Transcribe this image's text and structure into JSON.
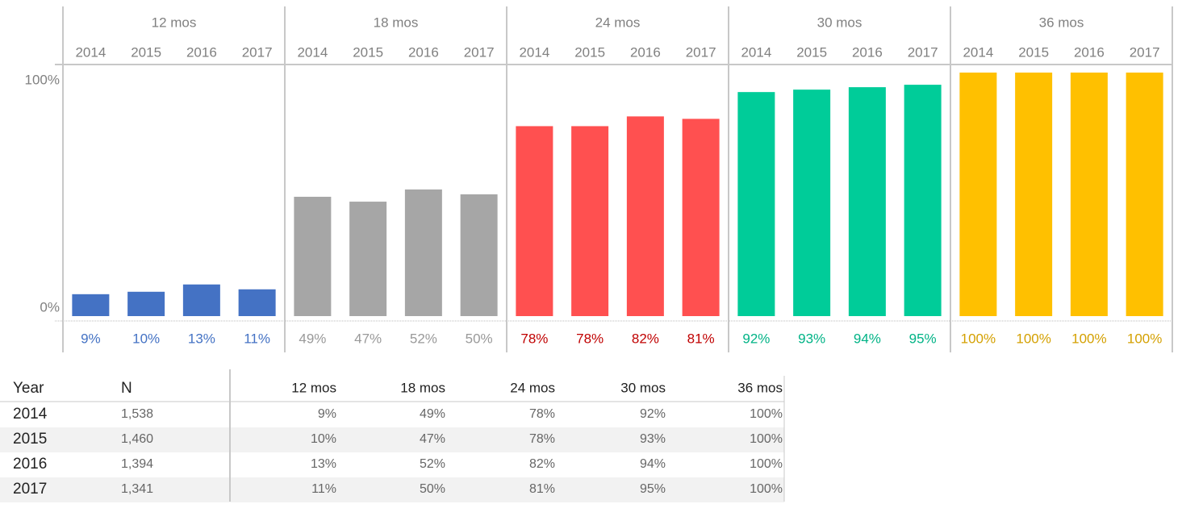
{
  "chart_data": {
    "type": "bar",
    "ylim": [
      0,
      100
    ],
    "yticks": [
      {
        "value": 0,
        "label": "0%"
      },
      {
        "value": 100,
        "label": "100%"
      }
    ],
    "groups": [
      {
        "name": "12 mos",
        "color": "#4472c4",
        "label_color": "#4472c4",
        "categories": [
          "2014",
          "2015",
          "2016",
          "2017"
        ],
        "values": [
          9,
          10,
          13,
          11
        ],
        "value_labels": [
          "9%",
          "10%",
          "13%",
          "11%"
        ]
      },
      {
        "name": "18 mos",
        "color": "#a6a6a6",
        "label_color": "#999999",
        "categories": [
          "2014",
          "2015",
          "2016",
          "2017"
        ],
        "values": [
          49,
          47,
          52,
          50
        ],
        "value_labels": [
          "49%",
          "47%",
          "52%",
          "50%"
        ]
      },
      {
        "name": "24 mos",
        "color": "#ff5050",
        "label_color": "#c00000",
        "categories": [
          "2014",
          "2015",
          "2016",
          "2017"
        ],
        "values": [
          78,
          78,
          82,
          81
        ],
        "value_labels": [
          "78%",
          "78%",
          "82%",
          "81%"
        ]
      },
      {
        "name": "30 mos",
        "color": "#00cc99",
        "label_color": "#00b386",
        "categories": [
          "2014",
          "2015",
          "2016",
          "2017"
        ],
        "values": [
          92,
          93,
          94,
          95
        ],
        "value_labels": [
          "92%",
          "93%",
          "94%",
          "95%"
        ]
      },
      {
        "name": "36 mos",
        "color": "#ffc000",
        "label_color": "#d4a000",
        "categories": [
          "2014",
          "2015",
          "2016",
          "2017"
        ],
        "values": [
          100,
          100,
          100,
          100
        ],
        "value_labels": [
          "100%",
          "100%",
          "100%",
          "100%"
        ]
      }
    ]
  },
  "table": {
    "columns": [
      "Year",
      "N",
      "12 mos",
      "18 mos",
      "24 mos",
      "30 mos",
      "36 mos"
    ],
    "rows": [
      [
        "2014",
        "1,538",
        "9%",
        "49%",
        "78%",
        "92%",
        "100%"
      ],
      [
        "2015",
        "1,460",
        "10%",
        "47%",
        "78%",
        "93%",
        "100%"
      ],
      [
        "2016",
        "1,394",
        "13%",
        "52%",
        "82%",
        "94%",
        "100%"
      ],
      [
        "2017",
        "1,341",
        "11%",
        "50%",
        "81%",
        "95%",
        "100%"
      ]
    ]
  }
}
